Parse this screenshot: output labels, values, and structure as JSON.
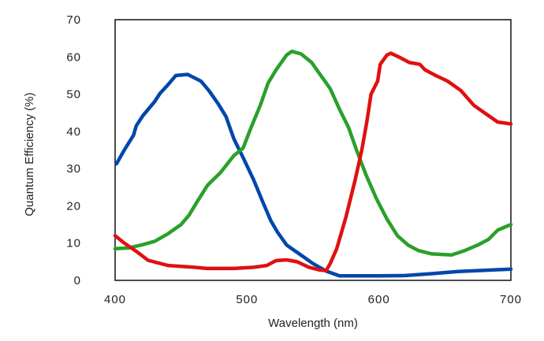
{
  "chart_data": {
    "type": "line",
    "xlabel": "Wavelength (nm)",
    "ylabel": "Quantum Efficiency (%)",
    "xlim": [
      400,
      700
    ],
    "ylim": [
      0,
      70
    ],
    "xticks": [
      400,
      500,
      600,
      700
    ],
    "yticks": [
      0,
      10,
      20,
      30,
      40,
      50,
      60,
      70
    ],
    "grid": false,
    "legend": "none",
    "series": [
      {
        "color": "#0047AB",
        "points": [
          [
            401,
            31.3
          ],
          [
            407,
            35
          ],
          [
            414,
            39
          ],
          [
            416,
            41.5
          ],
          [
            421,
            44.2
          ],
          [
            430,
            48
          ],
          [
            434,
            50.2
          ],
          [
            440,
            52.5
          ],
          [
            446,
            55
          ],
          [
            455,
            55.3
          ],
          [
            465,
            53.5
          ],
          [
            471,
            51
          ],
          [
            478,
            47.5
          ],
          [
            484,
            44
          ],
          [
            490,
            38
          ],
          [
            497,
            33
          ],
          [
            505,
            27
          ],
          [
            512,
            21
          ],
          [
            518,
            16
          ],
          [
            523,
            13
          ],
          [
            530,
            9.5
          ],
          [
            540,
            7
          ],
          [
            550,
            4.5
          ],
          [
            560,
            2.5
          ],
          [
            570,
            1.2
          ],
          [
            580,
            1.2
          ],
          [
            600,
            1.2
          ],
          [
            620,
            1.3
          ],
          [
            640,
            1.8
          ],
          [
            660,
            2.4
          ],
          [
            680,
            2.7
          ],
          [
            700,
            3
          ]
        ]
      },
      {
        "color": "#2AA02A",
        "points": [
          [
            400,
            8.5
          ],
          [
            410,
            8.7
          ],
          [
            420,
            9.5
          ],
          [
            430,
            10.5
          ],
          [
            440,
            12.5
          ],
          [
            450,
            15
          ],
          [
            456,
            17.5
          ],
          [
            462,
            21
          ],
          [
            470,
            25.5
          ],
          [
            480,
            29
          ],
          [
            490,
            33.5
          ],
          [
            497,
            35.5
          ],
          [
            503,
            41
          ],
          [
            510,
            47
          ],
          [
            516,
            53
          ],
          [
            522,
            56.5
          ],
          [
            530,
            60.5
          ],
          [
            534,
            61.5
          ],
          [
            541,
            60.8
          ],
          [
            549,
            58.5
          ],
          [
            556,
            55
          ],
          [
            563,
            51.5
          ],
          [
            570,
            46
          ],
          [
            577,
            41
          ],
          [
            583,
            35
          ],
          [
            590,
            28.5
          ],
          [
            598,
            22
          ],
          [
            606,
            16.5
          ],
          [
            614,
            12
          ],
          [
            622,
            9.5
          ],
          [
            630,
            8
          ],
          [
            640,
            7.1
          ],
          [
            655,
            6.8
          ],
          [
            665,
            8
          ],
          [
            675,
            9.5
          ],
          [
            683,
            11
          ],
          [
            690,
            13.5
          ],
          [
            700,
            15
          ]
        ]
      },
      {
        "color": "#E01010",
        "points": [
          [
            400,
            12
          ],
          [
            407,
            10
          ],
          [
            416,
            7.8
          ],
          [
            425,
            5.4
          ],
          [
            440,
            4
          ],
          [
            460,
            3.5
          ],
          [
            470,
            3.2
          ],
          [
            490,
            3.2
          ],
          [
            505,
            3.5
          ],
          [
            515,
            4
          ],
          [
            522,
            5.3
          ],
          [
            530,
            5.5
          ],
          [
            538,
            5
          ],
          [
            547,
            3.5
          ],
          [
            555,
            2.8
          ],
          [
            560,
            2.6
          ],
          [
            563,
            4.5
          ],
          [
            568,
            8.5
          ],
          [
            575,
            17
          ],
          [
            582,
            27
          ],
          [
            587,
            35
          ],
          [
            591,
            43
          ],
          [
            594,
            50
          ],
          [
            599,
            53.5
          ],
          [
            601,
            58
          ],
          [
            606,
            60.5
          ],
          [
            609,
            61
          ],
          [
            615,
            60
          ],
          [
            623,
            58.5
          ],
          [
            631,
            58
          ],
          [
            635,
            56.5
          ],
          [
            643,
            55
          ],
          [
            652,
            53.5
          ],
          [
            662,
            51
          ],
          [
            672,
            47
          ],
          [
            682,
            44.5
          ],
          [
            690,
            42.5
          ],
          [
            700,
            42
          ]
        ]
      }
    ]
  }
}
